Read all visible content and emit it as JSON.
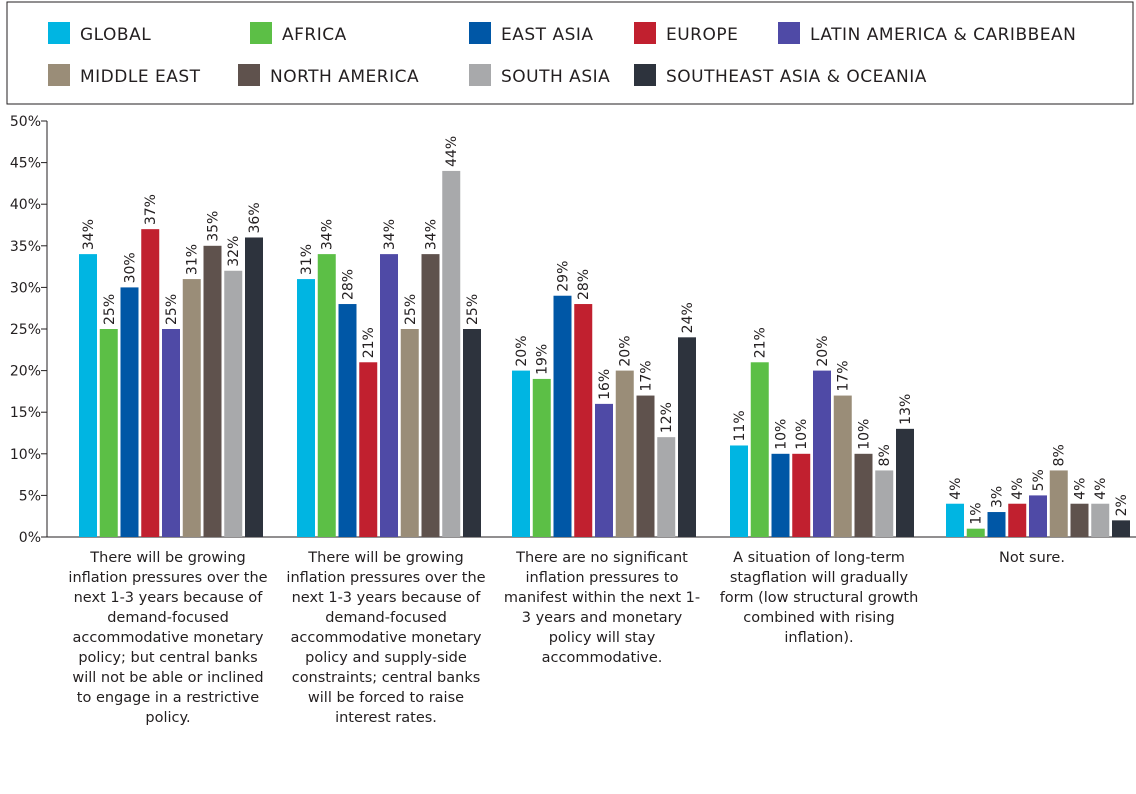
{
  "chart_data": {
    "type": "bar",
    "categories": [
      "There will be growing inflation pressures over the next 1-3 years because of demand-focused accommodative monetary policy; but central banks will not be able or inclined to engage in a restrictive policy.",
      "There will be growing inflation pressures over the next 1-3 years because of demand-focused accommodative monetary policy and supply-side constraints; central banks will be forced to raise interest rates.",
      "There are no significant inflation pressures to manifest within the next 1-3 years and monetary policy will stay accommodative.",
      "A situation of long-term stagflation will gradually form (low structural growth combined with rising inflation).",
      "Not sure."
    ],
    "series": [
      {
        "name": "GLOBAL",
        "color": "#00b5e2",
        "values": [
          34,
          31,
          20,
          11,
          4
        ]
      },
      {
        "name": "AFRICA",
        "color": "#5cbf46",
        "values": [
          25,
          34,
          19,
          21,
          1
        ]
      },
      {
        "name": "EAST ASIA",
        "color": "#0057a6",
        "values": [
          30,
          28,
          29,
          10,
          3
        ]
      },
      {
        "name": "EUROPE",
        "color": "#c1202f",
        "values": [
          37,
          21,
          28,
          10,
          4
        ]
      },
      {
        "name": "LATIN AMERICA & CARIBBEAN",
        "color": "#4f4aa6",
        "values": [
          25,
          34,
          16,
          20,
          5
        ]
      },
      {
        "name": "MIDDLE EAST",
        "color": "#9a8d78",
        "values": [
          31,
          25,
          20,
          17,
          8
        ]
      },
      {
        "name": "NORTH AMERICA",
        "color": "#5f524d",
        "values": [
          35,
          34,
          17,
          10,
          4
        ]
      },
      {
        "name": "SOUTH ASIA",
        "color": "#a8a9ab",
        "values": [
          32,
          44,
          12,
          8,
          4
        ]
      },
      {
        "name": "SOUTHEAST ASIA & OCEANIA",
        "color": "#2d333d",
        "values": [
          36,
          25,
          24,
          13,
          2
        ]
      }
    ],
    "yticks": [
      "0%",
      "5%",
      "10%",
      "15%",
      "20%",
      "25%",
      "30%",
      "35%",
      "40%",
      "45%",
      "50%"
    ],
    "ylim": [
      0,
      50
    ],
    "value_suffix": "%",
    "grid": false,
    "legend_position": "top"
  }
}
